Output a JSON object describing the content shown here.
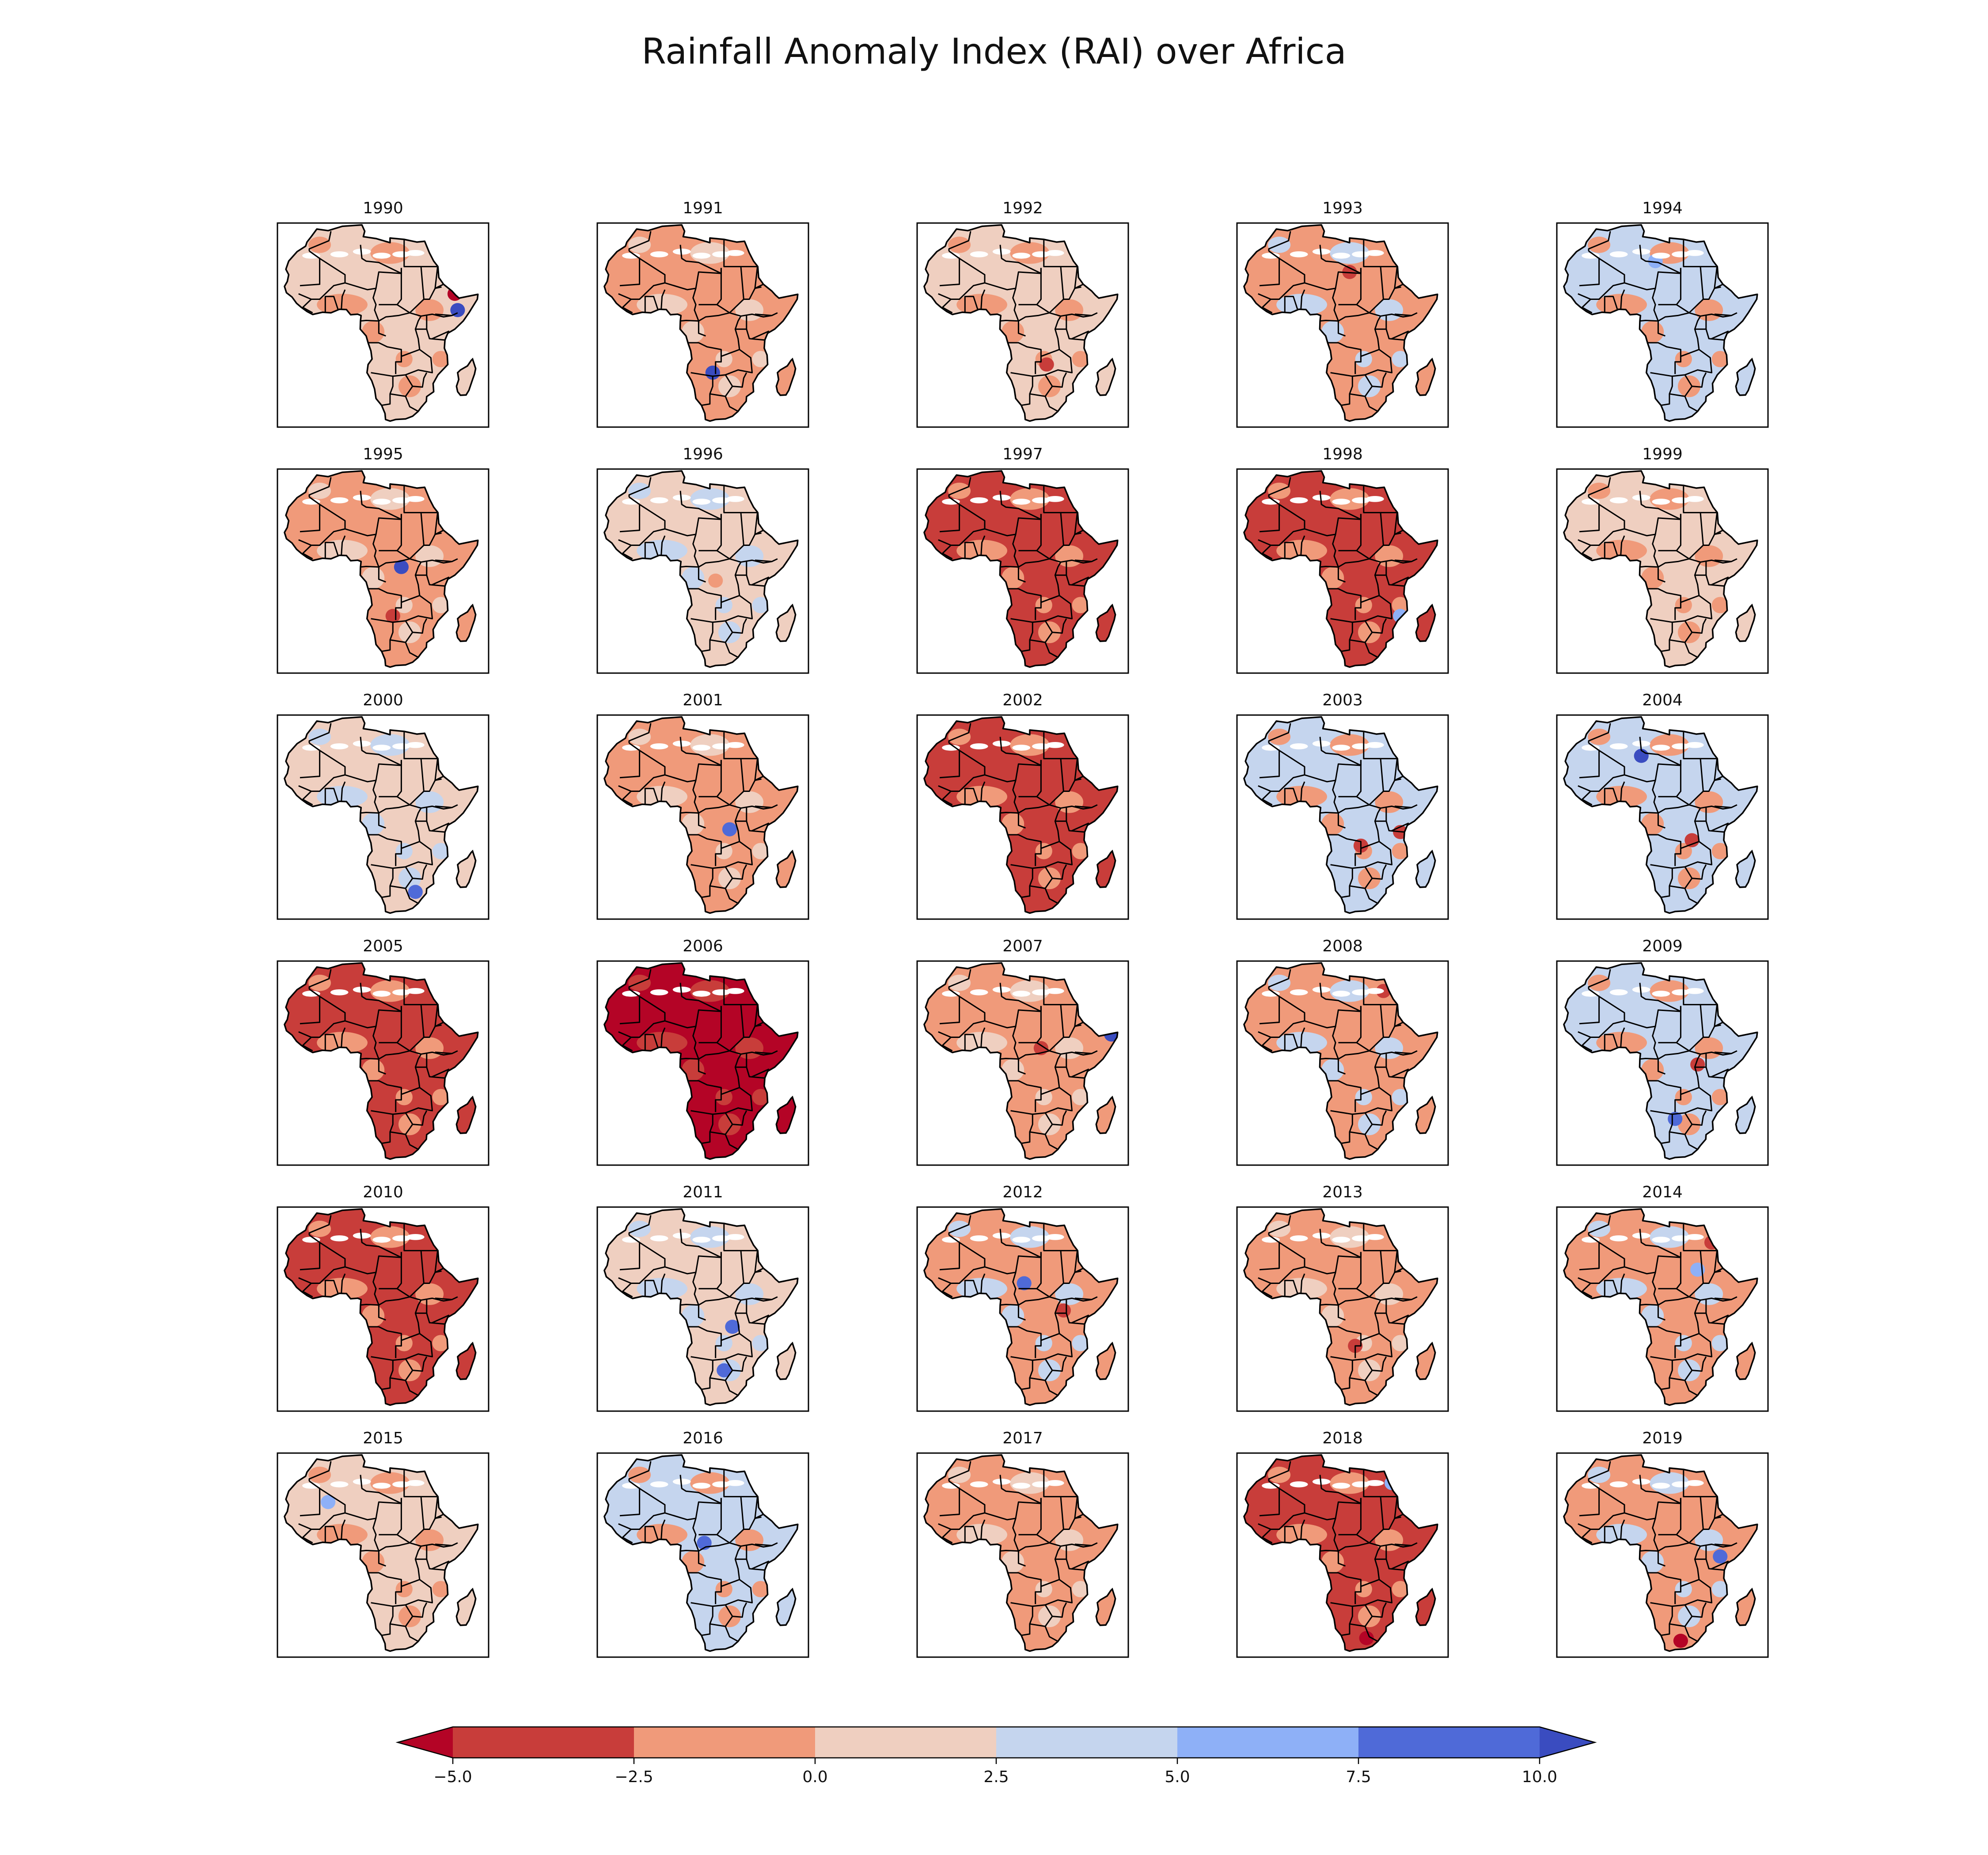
{
  "figure": {
    "title": "Rainfall Anomaly Index (RAI) over Africa"
  },
  "panels": [
    {
      "label": "1990",
      "dominant": 1,
      "secondary": -1,
      "hotspots": [
        {
          "lon": 43,
          "lat": 12,
          "v": -6
        },
        {
          "lon": 44,
          "lat": 6,
          "v": 10
        }
      ]
    },
    {
      "label": "1991",
      "dominant": -1,
      "secondary": 1,
      "hotspots": [
        {
          "lon": 21,
          "lat": -17,
          "v": 10
        }
      ]
    },
    {
      "label": "1992",
      "dominant": 1,
      "secondary": -1,
      "hotspots": [
        {
          "lon": 26,
          "lat": -14,
          "v": -4
        }
      ]
    },
    {
      "label": "1993",
      "dominant": -1,
      "secondary": 3,
      "hotspots": [
        {
          "lon": 20,
          "lat": 20,
          "v": -4
        },
        {
          "lon": 38,
          "lat": 27,
          "v": 6
        }
      ]
    },
    {
      "label": "1994",
      "dominant": 3,
      "secondary": -1,
      "hotspots": [
        {
          "lon": 15,
          "lat": 24,
          "v": 6
        }
      ]
    },
    {
      "label": "1995",
      "dominant": -1,
      "secondary": 1,
      "hotspots": [
        {
          "lon": 24,
          "lat": 2,
          "v": 10
        },
        {
          "lon": 21,
          "lat": -16,
          "v": -4
        }
      ]
    },
    {
      "label": "1996",
      "dominant": 1,
      "secondary": 3,
      "hotspots": [
        {
          "lon": 22,
          "lat": -3,
          "v": -1
        }
      ]
    },
    {
      "label": "1997",
      "dominant": -4,
      "secondary": -1,
      "hotspots": []
    },
    {
      "label": "1998",
      "dominant": -4,
      "secondary": -1,
      "hotspots": [
        {
          "lon": 38,
          "lat": -16,
          "v": 6
        }
      ]
    },
    {
      "label": "1999",
      "dominant": 1,
      "secondary": -1,
      "hotspots": [
        {
          "lon": 39,
          "lat": 25,
          "v": -3
        }
      ]
    },
    {
      "label": "2000",
      "dominant": 1,
      "secondary": 3,
      "hotspots": [
        {
          "lon": 29,
          "lat": -27,
          "v": 8
        }
      ]
    },
    {
      "label": "2001",
      "dominant": -1,
      "secondary": 1,
      "hotspots": [
        {
          "lon": 27,
          "lat": -4,
          "v": 8
        }
      ]
    },
    {
      "label": "2002",
      "dominant": -4,
      "secondary": -1,
      "hotspots": []
    },
    {
      "label": "2003",
      "dominant": 3,
      "secondary": -1,
      "hotspots": [
        {
          "lon": 38,
          "lat": -5,
          "v": -4
        },
        {
          "lon": 24,
          "lat": -10,
          "v": -4
        }
      ]
    },
    {
      "label": "2004",
      "dominant": 3,
      "secondary": -1,
      "hotspots": [
        {
          "lon": 10,
          "lat": 23,
          "v": 10
        },
        {
          "lon": 28,
          "lat": -8,
          "v": -4
        }
      ]
    },
    {
      "label": "2005",
      "dominant": -4,
      "secondary": -1,
      "hotspots": []
    },
    {
      "label": "2006",
      "dominant": -6,
      "secondary": -4,
      "hotspots": []
    },
    {
      "label": "2007",
      "dominant": -1,
      "secondary": 1,
      "hotspots": [
        {
          "lon": 49,
          "lat": 11,
          "v": 10
        },
        {
          "lon": 24,
          "lat": 6,
          "v": -4
        }
      ]
    },
    {
      "label": "2008",
      "dominant": -1,
      "secondary": 3,
      "hotspots": [
        {
          "lon": 32,
          "lat": 27,
          "v": -4
        }
      ]
    },
    {
      "label": "2009",
      "dominant": 3,
      "secondary": -1,
      "hotspots": [
        {
          "lon": 22,
          "lat": -20,
          "v": 8
        },
        {
          "lon": 30,
          "lat": 0,
          "v": -4
        }
      ]
    },
    {
      "label": "2010",
      "dominant": -4,
      "secondary": -1,
      "hotspots": []
    },
    {
      "label": "2011",
      "dominant": 1,
      "secondary": 3,
      "hotspots": [
        {
          "lon": 28,
          "lat": -6,
          "v": 8
        },
        {
          "lon": 25,
          "lat": -22,
          "v": 8
        }
      ]
    },
    {
      "label": "2012",
      "dominant": -1,
      "secondary": 3,
      "hotspots": [
        {
          "lon": 18,
          "lat": 10,
          "v": 8
        },
        {
          "lon": 32,
          "lat": 0,
          "v": -4
        }
      ]
    },
    {
      "label": "2013",
      "dominant": -1,
      "secondary": 1,
      "hotspots": [
        {
          "lon": 22,
          "lat": -13,
          "v": -4
        }
      ]
    },
    {
      "label": "2014",
      "dominant": -1,
      "secondary": 3,
      "hotspots": [
        {
          "lon": 30,
          "lat": 15,
          "v": 6
        },
        {
          "lon": 35,
          "lat": 25,
          "v": -4
        }
      ]
    },
    {
      "label": "2015",
      "dominant": 1,
      "secondary": -1,
      "hotspots": [
        {
          "lon": -2,
          "lat": 20,
          "v": 6
        }
      ]
    },
    {
      "label": "2016",
      "dominant": 3,
      "secondary": -1,
      "hotspots": [
        {
          "lon": 18,
          "lat": 5,
          "v": 8
        }
      ]
    },
    {
      "label": "2017",
      "dominant": -1,
      "secondary": 1,
      "hotspots": []
    },
    {
      "label": "2018",
      "dominant": -4,
      "secondary": -1,
      "hotspots": [
        {
          "lon": 26,
          "lat": -30,
          "v": -6
        },
        {
          "lon": 35,
          "lat": 27,
          "v": 6
        }
      ]
    },
    {
      "label": "2019",
      "dominant": -1,
      "secondary": 3,
      "hotspots": [
        {
          "lon": 38,
          "lat": 0,
          "v": 8
        },
        {
          "lon": 24,
          "lat": -31,
          "v": -6
        }
      ]
    }
  ],
  "colorbar": {
    "ticks": [
      "−5.0",
      "−2.5",
      "0.0",
      "2.5",
      "5.0",
      "7.5",
      "10.0"
    ],
    "tick_values": [
      -5,
      -2.5,
      0,
      2.5,
      5,
      7.5,
      10
    ],
    "band_colors": [
      "#c83d3a",
      "#f09a7a",
      "#efcfc0",
      "#c5d5ee",
      "#8eb0f7",
      "#4f6ad8"
    ],
    "under_color": "#b40426",
    "over_color": "#3a4cc0",
    "extend": "both"
  },
  "colors": {
    "land_zero": "#dcdcdc",
    "border": "#000000"
  }
}
